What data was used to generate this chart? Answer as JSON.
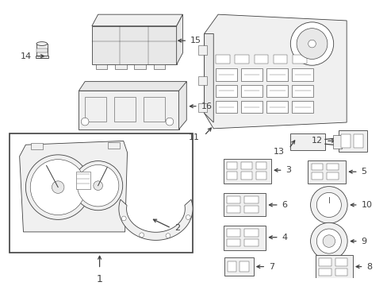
{
  "background_color": "#ffffff",
  "line_color": "#404040",
  "fig_width": 4.89,
  "fig_height": 3.6,
  "dpi": 100,
  "font_size": 8.0,
  "fill_color": "#e8e8e8",
  "fill_light": "#f0f0f0"
}
